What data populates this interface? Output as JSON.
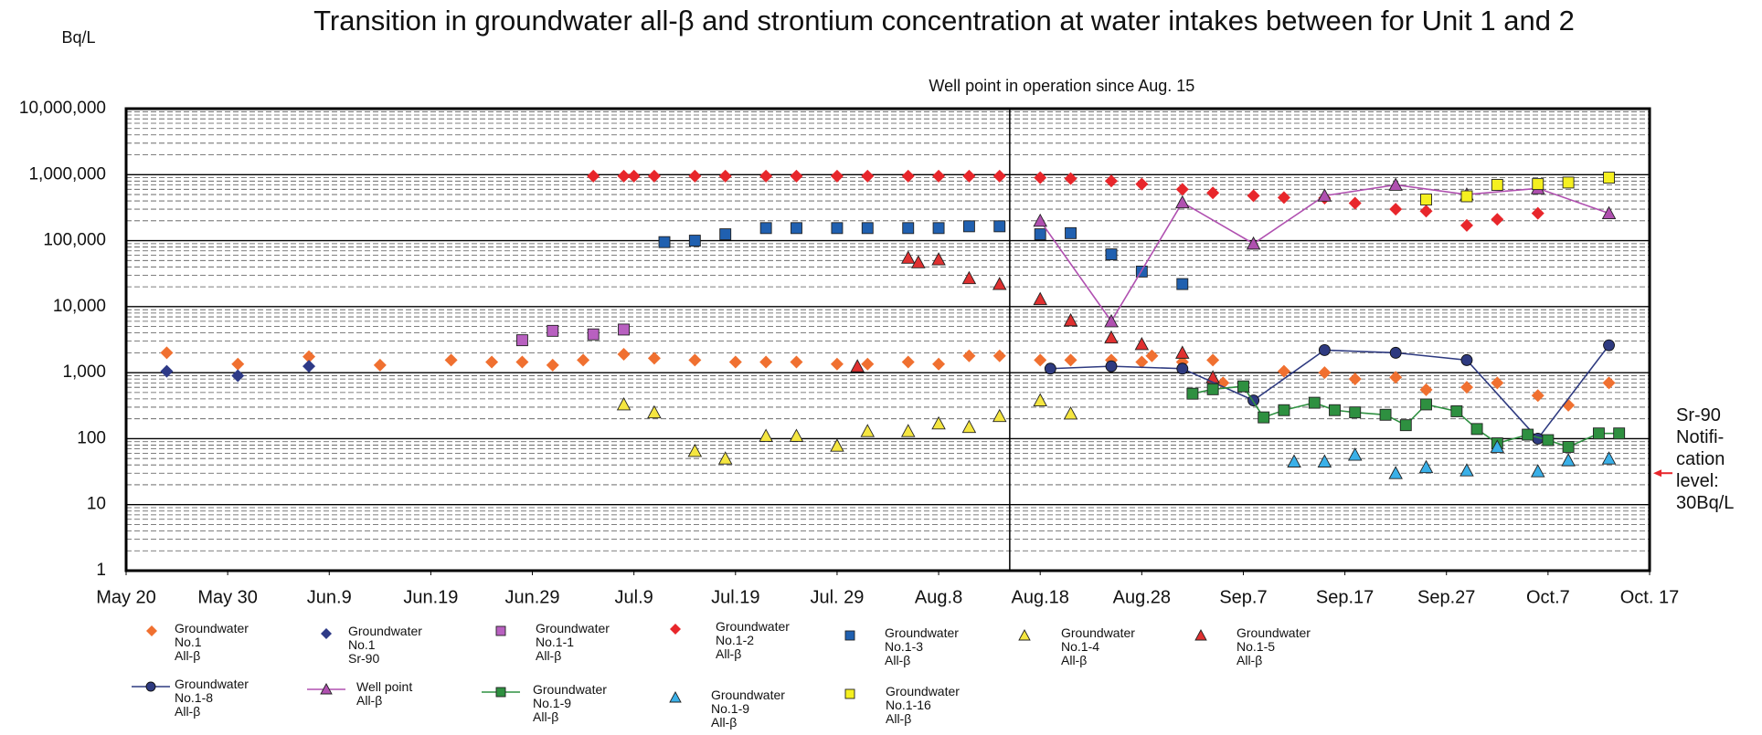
{
  "chart_data": {
    "type": "scatter",
    "title": "Transition in groundwater all-β and strontium concentration at water intakes between for Unit 1 and 2",
    "y_label": "Bq/L",
    "ylog": true,
    "ylim": [
      1,
      10000000
    ],
    "yticks": [
      1,
      10,
      100,
      {
        "value": 1000,
        "label": "1,000"
      },
      {
        "value": 10000,
        "label": "10,000"
      },
      {
        "value": 100000,
        "label": "100,000"
      },
      {
        "value": 1000000,
        "label": "1,000,000"
      },
      {
        "value": 10000000,
        "label": "10,000,000"
      }
    ],
    "minor_grid": true,
    "xlim": [
      "05-20",
      "10-17"
    ],
    "xticks": [
      {
        "value": "05-20",
        "label": "May 20"
      },
      {
        "value": "05-30",
        "label": "May 30"
      },
      {
        "value": "06-09",
        "label": "Jun.9"
      },
      {
        "value": "06-19",
        "label": "Jun.19"
      },
      {
        "value": "06-29",
        "label": "Jun.29"
      },
      {
        "value": "07-09",
        "label": "Jul.9"
      },
      {
        "value": "07-19",
        "label": "Jul.19"
      },
      {
        "value": "07-29",
        "label": "Jul. 29"
      },
      {
        "value": "08-08",
        "label": "Aug.8"
      },
      {
        "value": "08-18",
        "label": "Aug.18"
      },
      {
        "value": "08-28",
        "label": "Aug.28"
      },
      {
        "value": "09-07",
        "label": "Sep.7"
      },
      {
        "value": "09-17",
        "label": "Sep.17"
      },
      {
        "value": "09-27",
        "label": "Sep.27"
      },
      {
        "value": "10-07",
        "label": "Oct.7"
      },
      {
        "value": "10-17",
        "label": "Oct. 17"
      }
    ],
    "well_point": {
      "text": "Well point in operation since Aug. 15",
      "date": "08-15"
    },
    "notification": {
      "text": "Sr-90\nNotifi-\ncation\nlevel:\n30Bq/L",
      "value": 30,
      "color": "#e8262b"
    },
    "legend": "bottom",
    "series": [
      {
        "name": "Groundwater\nNo.1\nAll-β",
        "color": "#f07030",
        "marker": "diamond",
        "line": false,
        "x": [
          "05-24",
          "05-31",
          "06-07",
          "06-14",
          "06-21",
          "06-25",
          "06-28",
          "07-01",
          "07-04",
          "07-08",
          "07-11",
          "07-15",
          "07-19",
          "07-22",
          "07-25",
          "07-29",
          "08-01",
          "08-05",
          "08-08",
          "08-11",
          "08-14",
          "08-18",
          "08-21",
          "08-25",
          "08-28",
          "08-29",
          "09-01",
          "09-04",
          "09-05",
          "09-11",
          "09-15",
          "09-18",
          "09-22",
          "09-25",
          "09-29",
          "10-02",
          "10-06",
          "10-09",
          "10-13"
        ],
        "values": [
          2000,
          1350,
          1750,
          1300,
          1550,
          1450,
          1450,
          1300,
          1550,
          1900,
          1650,
          1550,
          1450,
          1450,
          1450,
          1350,
          1350,
          1450,
          1350,
          1800,
          1800,
          1550,
          1550,
          1550,
          1450,
          1800,
          1450,
          1550,
          700,
          1050,
          1000,
          800,
          850,
          550,
          600,
          700,
          450,
          320,
          700
        ]
      },
      {
        "name": "Groundwater\nNo.1\nSr-90",
        "color": "#2e3a87",
        "marker": "diamond",
        "line": false,
        "x": [
          "05-24",
          "05-31",
          "06-07"
        ],
        "values": [
          1050,
          900,
          1250
        ]
      },
      {
        "name": "Groundwater\nNo.1-1\nAll-β",
        "color": "#b860c0",
        "marker": "square",
        "line": false,
        "x": [
          "06-28",
          "07-01",
          "07-05",
          "07-08"
        ],
        "values": [
          3100,
          4300,
          3800,
          4500
        ]
      },
      {
        "name": "Groundwater\nNo.1-2\nAll-β",
        "color": "#e8262b",
        "marker": "diamond",
        "line": false,
        "x": [
          "07-05",
          "07-08",
          "07-09",
          "07-11",
          "07-15",
          "07-18",
          "07-22",
          "07-25",
          "07-29",
          "08-01",
          "08-05",
          "08-08",
          "08-11",
          "08-14",
          "08-18",
          "08-21",
          "08-25",
          "08-28",
          "09-01",
          "09-04",
          "09-08",
          "09-11",
          "09-15",
          "09-18",
          "09-22",
          "09-25",
          "09-29",
          "10-02",
          "10-06"
        ],
        "values": [
          950000,
          950000,
          950000,
          950000,
          950000,
          950000,
          950000,
          950000,
          950000,
          950000,
          950000,
          950000,
          950000,
          950000,
          900000,
          870000,
          800000,
          720000,
          600000,
          530000,
          480000,
          450000,
          440000,
          370000,
          300000,
          280000,
          170000,
          210000,
          260000
        ]
      },
      {
        "name": "Groundwater\nNo.1-3\nAll-β",
        "color": "#2060b0",
        "marker": "square",
        "line": false,
        "x": [
          "07-12",
          "07-15",
          "07-18",
          "07-22",
          "07-25",
          "07-29",
          "08-01",
          "08-05",
          "08-08",
          "08-11",
          "08-14",
          "08-18",
          "08-21",
          "08-25",
          "08-28",
          "09-01"
        ],
        "values": [
          95000,
          100000,
          125000,
          155000,
          155000,
          155000,
          155000,
          155000,
          155000,
          165000,
          165000,
          125000,
          130000,
          62000,
          34000,
          22000
        ]
      },
      {
        "name": "Groundwater\nNo.1-4\nAll-β",
        "color": "#f5e640",
        "marker": "triangle",
        "line": false,
        "x": [
          "07-08",
          "07-11",
          "07-15",
          "07-18",
          "07-22",
          "07-25",
          "07-29",
          "08-01",
          "08-05",
          "08-08",
          "08-11",
          "08-14",
          "08-18",
          "08-21"
        ],
        "values": [
          330,
          250,
          65,
          50,
          110,
          110,
          78,
          130,
          130,
          170,
          150,
          220,
          380,
          240
        ]
      },
      {
        "name": "Groundwater\nNo.1-5\nAll-β",
        "color": "#e03030",
        "marker": "triangle",
        "line": false,
        "x": [
          "07-31",
          "08-05",
          "08-06",
          "08-08",
          "08-11",
          "08-14",
          "08-18",
          "08-21",
          "08-25",
          "08-28",
          "09-01",
          "09-04"
        ],
        "values": [
          1250,
          55000,
          47000,
          52000,
          27000,
          22000,
          13000,
          6200,
          3400,
          2700,
          2000,
          850
        ]
      },
      {
        "name": "Groundwater\nNo.1-8\nAll-β",
        "color": "#2e3a80",
        "marker": "circle",
        "line": true,
        "x": [
          "08-19",
          "08-25",
          "09-01",
          "09-08",
          "09-15",
          "09-22",
          "09-29",
          "10-06",
          "10-13"
        ],
        "values": [
          1150,
          1250,
          1150,
          380,
          2200,
          2000,
          1550,
          100,
          2600
        ]
      },
      {
        "name": "Well point\nAll-β",
        "color": "#b050b0",
        "marker": "triangle",
        "line": true,
        "x": [
          "08-18",
          "08-25",
          "09-01",
          "09-08",
          "09-15",
          "09-22",
          "09-29",
          "10-06",
          "10-13"
        ],
        "values": [
          200000,
          6000,
          380000,
          90000,
          480000,
          700000,
          500000,
          620000,
          260000
        ]
      },
      {
        "name": "Groundwater\nNo.1-9\nAll-β",
        "color": "#2e9040",
        "marker": "square",
        "line": true,
        "x": [
          "09-02",
          "09-04",
          "09-07",
          "09-09",
          "09-11",
          "09-14",
          "09-16",
          "09-18",
          "09-21",
          "09-23",
          "09-25",
          "09-28",
          "09-30",
          "10-02",
          "10-05",
          "10-07",
          "10-09",
          "10-12",
          "10-14"
        ],
        "values": [
          480,
          560,
          620,
          210,
          270,
          350,
          270,
          250,
          230,
          160,
          330,
          260,
          140,
          85,
          115,
          95,
          75,
          120,
          120
        ]
      },
      {
        "name": "Groundwater\nNo.1-9\nAll-β",
        "color": "#3ab0e8",
        "marker": "triangle",
        "line": false,
        "x": [
          "09-12",
          "09-15",
          "09-18",
          "09-22",
          "09-25",
          "09-29",
          "10-02",
          "10-06",
          "10-09",
          "10-13"
        ],
        "values": [
          45,
          45,
          57,
          30,
          37,
          33,
          75,
          32,
          47,
          50
        ]
      },
      {
        "name": "Groundwater\nNo.1-16\nAll-β",
        "color": "#f5f020",
        "marker": "square",
        "line": false,
        "x": [
          "09-25",
          "09-29",
          "10-02",
          "10-06",
          "10-09",
          "10-13"
        ],
        "values": [
          420000,
          470000,
          700000,
          720000,
          760000,
          900000
        ]
      }
    ]
  }
}
